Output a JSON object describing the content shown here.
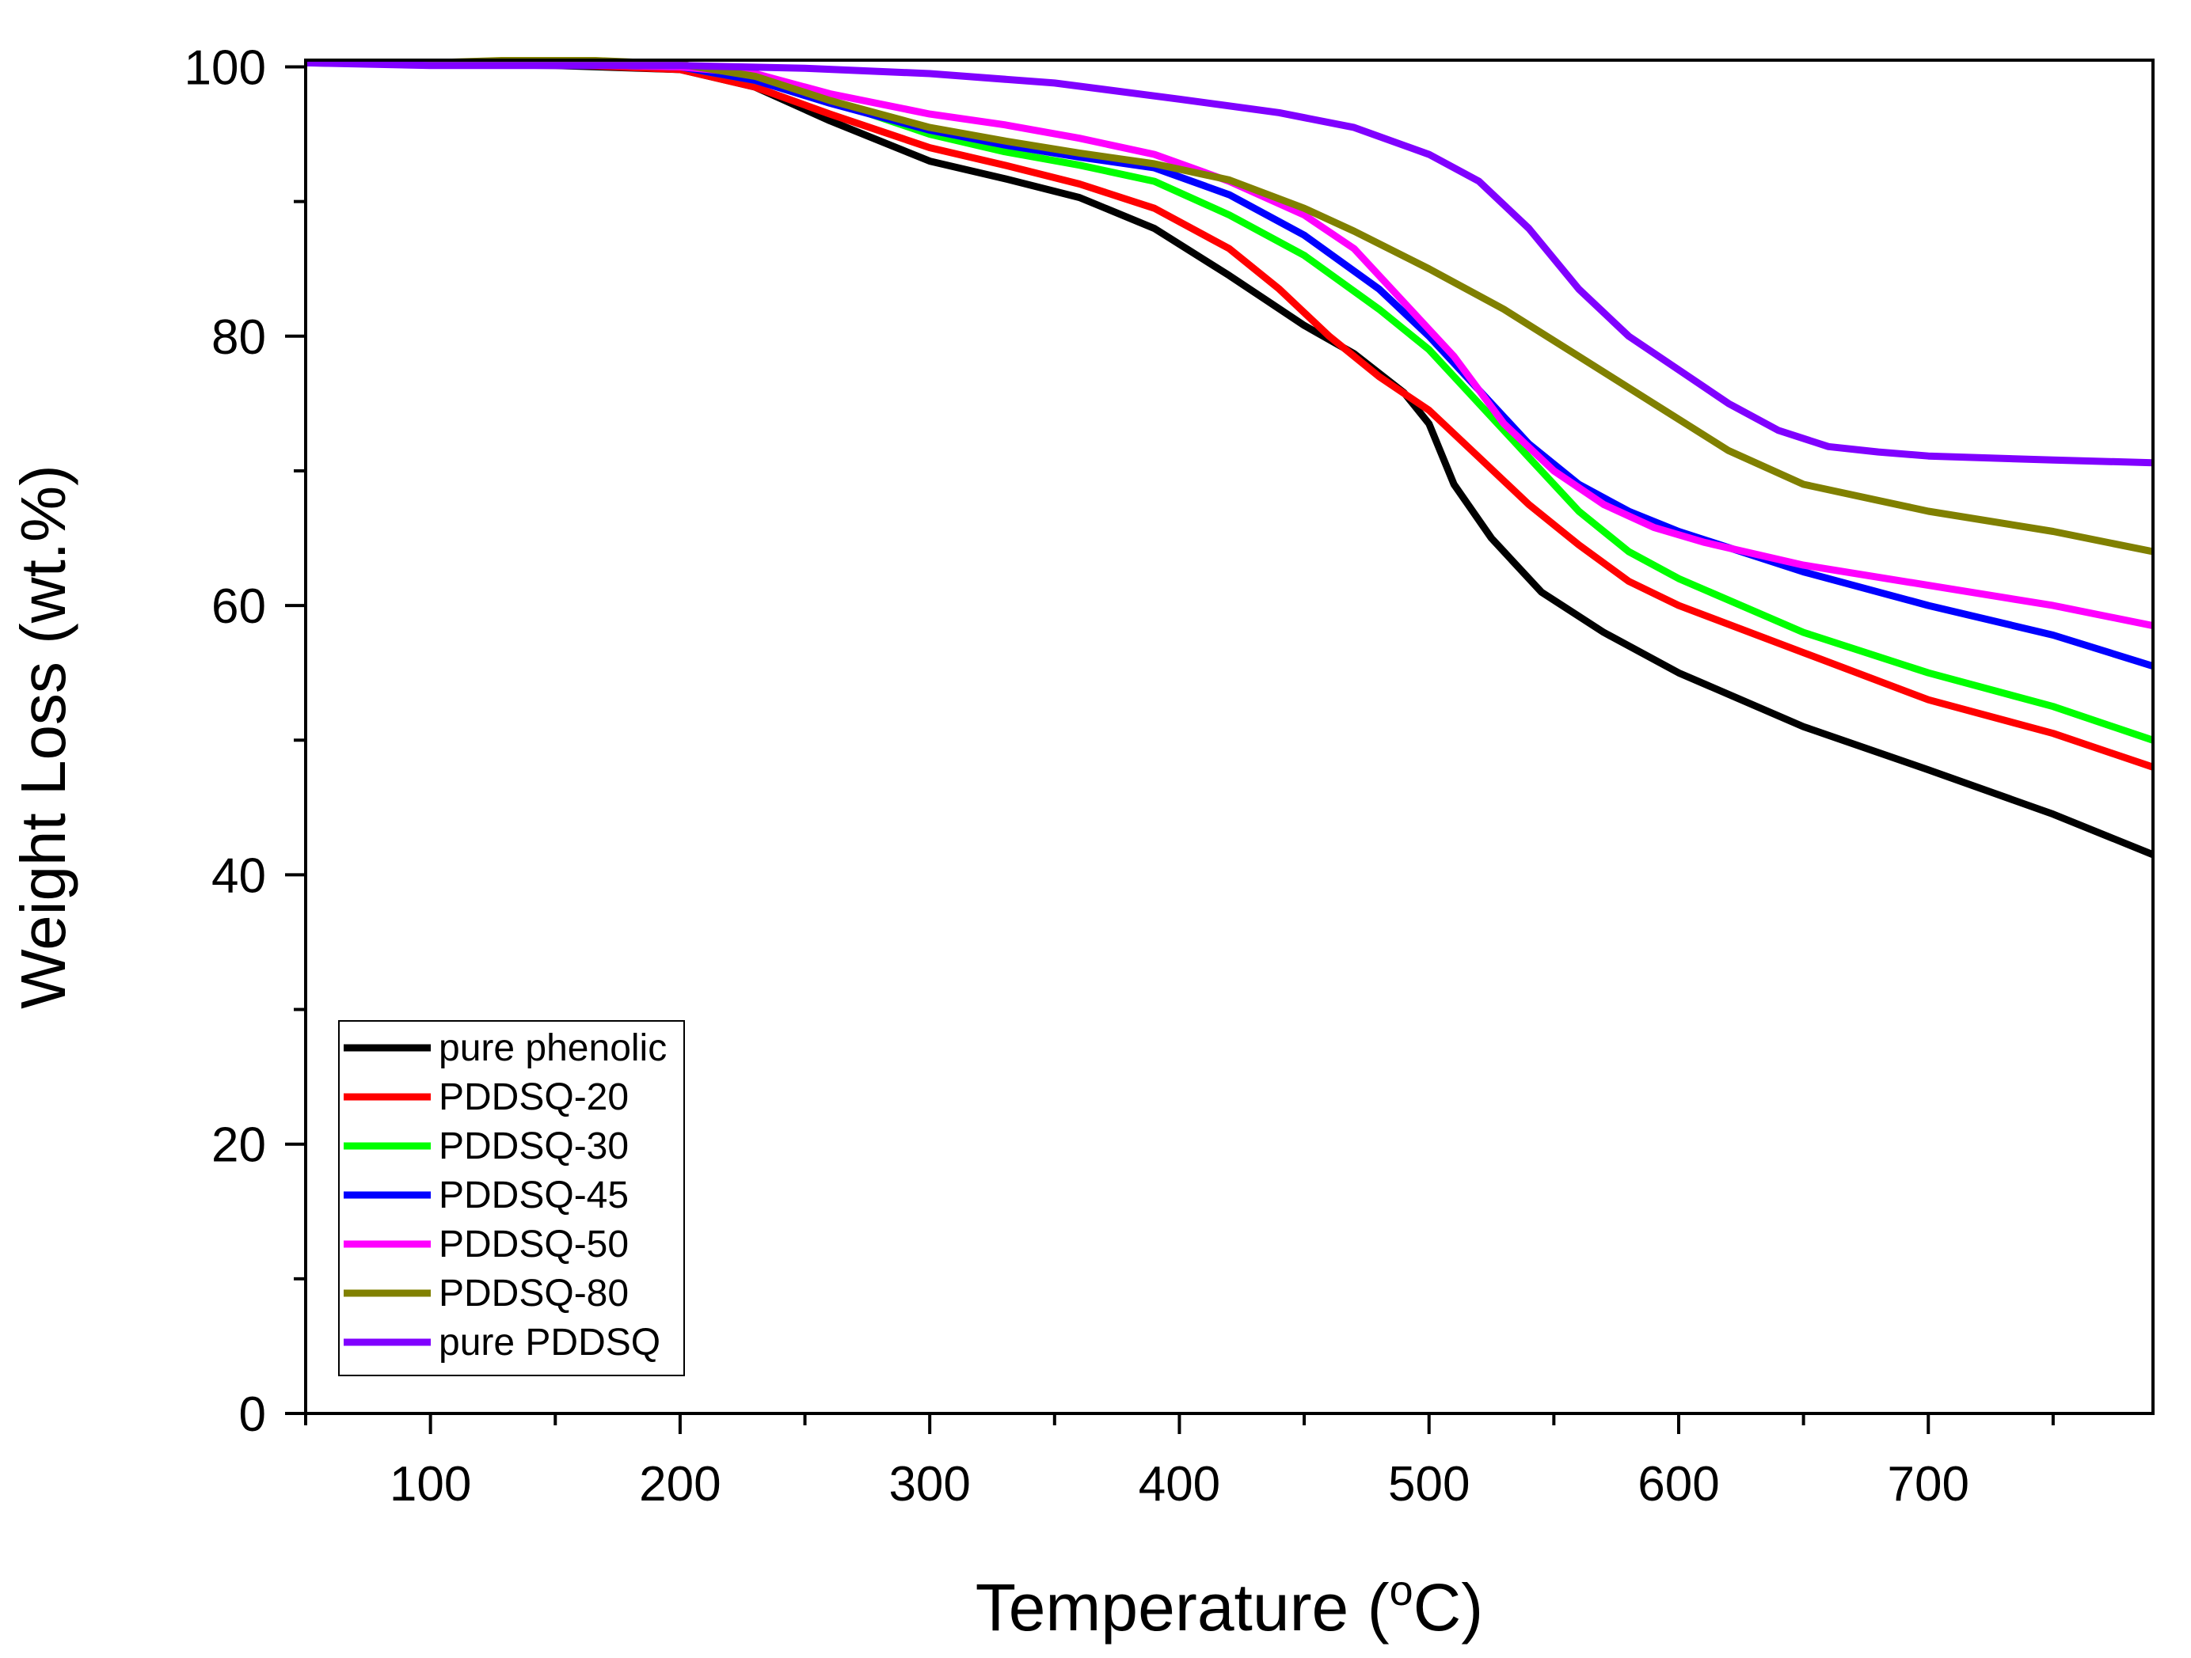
{
  "chart_data": {
    "type": "line",
    "title": "",
    "xlabel": "Temperature (",
    "xlabel_sup": "o",
    "xlabel_end": "C)",
    "ylabel": "Weight Loss (wt.%)",
    "xlim": [
      50,
      790
    ],
    "ylim": [
      0,
      100.5
    ],
    "x_ticks": [
      100,
      200,
      300,
      400,
      500,
      600,
      700
    ],
    "x_tick_labels": [
      "100",
      "200",
      "300",
      "400",
      "500",
      "600",
      "700"
    ],
    "y_ticks": [
      0,
      20,
      40,
      60,
      80,
      100
    ],
    "y_tick_labels": [
      "0",
      "20",
      "40",
      "60",
      "80",
      "100"
    ],
    "legend_position": "bottom-left",
    "grid": false,
    "series": [
      {
        "name": "pure phenolic",
        "color": "#000000",
        "points": [
          [
            50,
            100.3
          ],
          [
            150,
            100.1
          ],
          [
            200,
            99.8
          ],
          [
            230,
            98.5
          ],
          [
            260,
            96
          ],
          [
            300,
            93
          ],
          [
            330,
            91.7
          ],
          [
            360,
            90.3
          ],
          [
            390,
            88
          ],
          [
            420,
            84.5
          ],
          [
            450,
            80.8
          ],
          [
            470,
            78.7
          ],
          [
            490,
            75.8
          ],
          [
            500,
            73.5
          ],
          [
            510,
            69
          ],
          [
            525,
            65
          ],
          [
            545,
            61
          ],
          [
            570,
            58
          ],
          [
            600,
            55
          ],
          [
            650,
            51
          ],
          [
            700,
            47.8
          ],
          [
            750,
            44.5
          ],
          [
            790,
            41.5
          ]
        ]
      },
      {
        "name": "PDDSQ-20",
        "color": "#ff0000",
        "points": [
          [
            50,
            100.3
          ],
          [
            150,
            100.2
          ],
          [
            200,
            99.8
          ],
          [
            230,
            98.5
          ],
          [
            260,
            96.5
          ],
          [
            300,
            94
          ],
          [
            330,
            92.7
          ],
          [
            360,
            91.3
          ],
          [
            390,
            89.5
          ],
          [
            420,
            86.5
          ],
          [
            440,
            83.5
          ],
          [
            460,
            80
          ],
          [
            480,
            77
          ],
          [
            500,
            74.5
          ],
          [
            520,
            71
          ],
          [
            540,
            67.5
          ],
          [
            560,
            64.5
          ],
          [
            580,
            61.8
          ],
          [
            600,
            60
          ],
          [
            650,
            56.5
          ],
          [
            700,
            53
          ],
          [
            750,
            50.5
          ],
          [
            790,
            48
          ]
        ]
      },
      {
        "name": "PDDSQ-30",
        "color": "#00ff00",
        "points": [
          [
            50,
            100.3
          ],
          [
            150,
            100.2
          ],
          [
            200,
            100
          ],
          [
            230,
            99
          ],
          [
            260,
            97.5
          ],
          [
            300,
            95
          ],
          [
            330,
            93.7
          ],
          [
            360,
            92.7
          ],
          [
            390,
            91.5
          ],
          [
            420,
            89
          ],
          [
            450,
            86
          ],
          [
            480,
            82
          ],
          [
            500,
            79
          ],
          [
            520,
            75
          ],
          [
            540,
            71
          ],
          [
            560,
            67
          ],
          [
            580,
            64
          ],
          [
            600,
            62
          ],
          [
            650,
            58
          ],
          [
            700,
            55
          ],
          [
            750,
            52.5
          ],
          [
            790,
            50
          ]
        ]
      },
      {
        "name": "PDDSQ-45",
        "color": "#0000ff",
        "points": [
          [
            50,
            100.3
          ],
          [
            150,
            100.2
          ],
          [
            200,
            100
          ],
          [
            230,
            99
          ],
          [
            260,
            97.3
          ],
          [
            300,
            95.3
          ],
          [
            330,
            94.2
          ],
          [
            360,
            93.3
          ],
          [
            390,
            92.5
          ],
          [
            420,
            90.5
          ],
          [
            450,
            87.5
          ],
          [
            480,
            83.5
          ],
          [
            500,
            80
          ],
          [
            520,
            76
          ],
          [
            540,
            72
          ],
          [
            560,
            69
          ],
          [
            580,
            67
          ],
          [
            600,
            65.5
          ],
          [
            650,
            62.5
          ],
          [
            700,
            60
          ],
          [
            750,
            57.8
          ],
          [
            790,
            55.5
          ]
        ]
      },
      {
        "name": "PDDSQ-50",
        "color": "#ff00ff",
        "points": [
          [
            50,
            100.3
          ],
          [
            150,
            100.2
          ],
          [
            200,
            100
          ],
          [
            230,
            99.5
          ],
          [
            260,
            98
          ],
          [
            300,
            96.5
          ],
          [
            330,
            95.7
          ],
          [
            360,
            94.7
          ],
          [
            390,
            93.5
          ],
          [
            420,
            91.5
          ],
          [
            450,
            89
          ],
          [
            470,
            86.5
          ],
          [
            490,
            82.5
          ],
          [
            510,
            78.5
          ],
          [
            530,
            73.5
          ],
          [
            550,
            70
          ],
          [
            570,
            67.5
          ],
          [
            590,
            65.8
          ],
          [
            610,
            64.7
          ],
          [
            650,
            63
          ],
          [
            700,
            61.5
          ],
          [
            750,
            60
          ],
          [
            790,
            58.5
          ]
        ]
      },
      {
        "name": "PDDSQ-80",
        "color": "#808000",
        "points": [
          [
            50,
            100.3
          ],
          [
            100,
            100.3
          ],
          [
            150,
            100.6
          ],
          [
            200,
            100.2
          ],
          [
            230,
            99.3
          ],
          [
            260,
            97.5
          ],
          [
            300,
            95.5
          ],
          [
            330,
            94.5
          ],
          [
            360,
            93.6
          ],
          [
            390,
            92.8
          ],
          [
            420,
            91.6
          ],
          [
            450,
            89.5
          ],
          [
            470,
            87.8
          ],
          [
            500,
            85
          ],
          [
            530,
            82
          ],
          [
            560,
            78.5
          ],
          [
            590,
            75
          ],
          [
            620,
            71.5
          ],
          [
            650,
            69
          ],
          [
            700,
            67
          ],
          [
            750,
            65.5
          ],
          [
            790,
            64
          ]
        ]
      },
      {
        "name": "pure PDDSQ",
        "color": "#8000ff",
        "points": [
          [
            50,
            100.3
          ],
          [
            100,
            100.1
          ],
          [
            150,
            100.1
          ],
          [
            200,
            100.1
          ],
          [
            250,
            99.9
          ],
          [
            300,
            99.5
          ],
          [
            350,
            98.8
          ],
          [
            400,
            97.6
          ],
          [
            440,
            96.6
          ],
          [
            470,
            95.5
          ],
          [
            500,
            93.5
          ],
          [
            520,
            91.5
          ],
          [
            540,
            88
          ],
          [
            560,
            83.5
          ],
          [
            580,
            80
          ],
          [
            600,
            77.5
          ],
          [
            620,
            75
          ],
          [
            640,
            73
          ],
          [
            660,
            71.8
          ],
          [
            680,
            71.4
          ],
          [
            700,
            71.1
          ],
          [
            750,
            70.8
          ],
          [
            790,
            70.6
          ]
        ]
      }
    ]
  }
}
